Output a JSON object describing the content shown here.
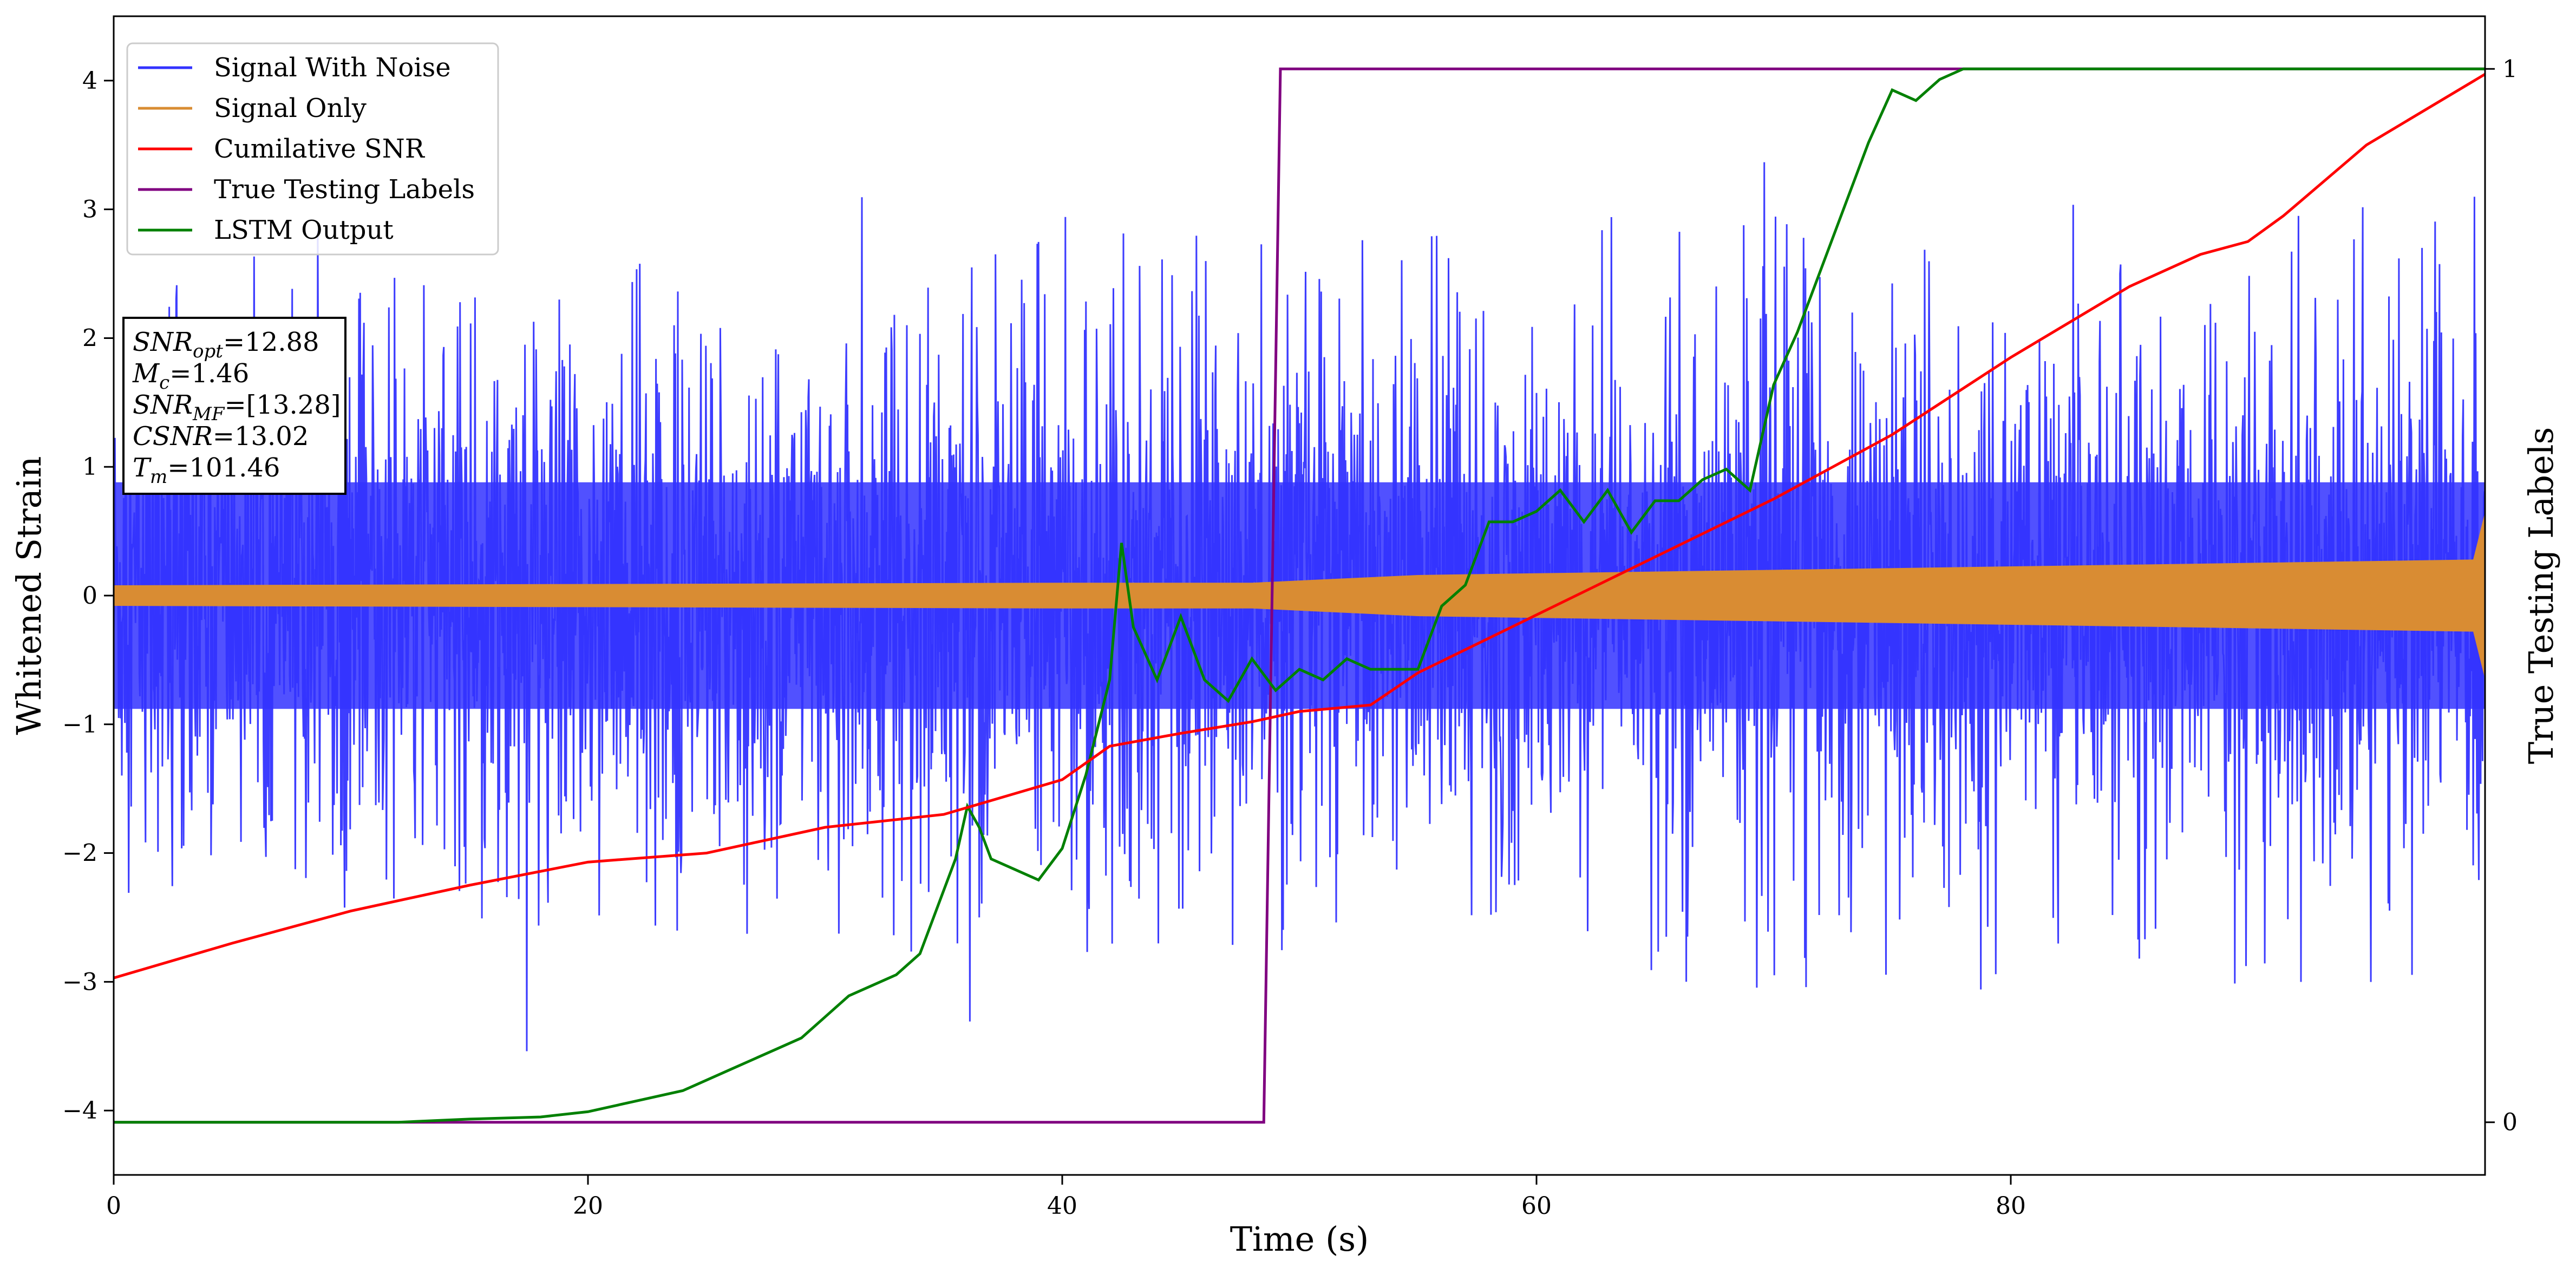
{
  "chart_data": {
    "type": "line",
    "xlabel": "Time (s)",
    "ylabel": "Whitened Strain",
    "y2label": "True Testing Labels",
    "xlim": [
      0,
      100
    ],
    "ylim": [
      -4.5,
      4.5
    ],
    "y2lim": [
      -0.05,
      1.05
    ],
    "x_ticks": [
      0,
      20,
      40,
      60,
      80
    ],
    "y_ticks": [
      -4,
      -3,
      -2,
      -1,
      0,
      1,
      2,
      3,
      4
    ],
    "y2_ticks": [
      0,
      1
    ],
    "legend_position": "upper-left",
    "grid": false,
    "colors": {
      "noise": "#3333ff",
      "signal": "#d98c33",
      "csnr": "#ff0000",
      "labels": "#800080",
      "lstm": "#008000"
    },
    "series": [
      {
        "name": "Signal With Noise",
        "color": "#3333ff",
        "description_style": "dense noise band",
        "band": [
          {
            "x": 0,
            "low": -1.6,
            "high": 1.6,
            "peak_low": -2.3,
            "peak_high": 2.4
          },
          {
            "x": 20,
            "low": -1.6,
            "high": 1.6,
            "peak_low": -2.4,
            "peak_high": 2.6
          },
          {
            "x": 40,
            "low": -1.6,
            "high": 1.6,
            "peak_low": -2.5,
            "peak_high": 2.8
          },
          {
            "x": 60,
            "low": -1.6,
            "high": 1.6,
            "peak_low": -2.6,
            "peak_high": 3.0
          },
          {
            "x": 80,
            "low": -1.6,
            "high": 1.6,
            "peak_low": -2.7,
            "peak_high": 3.1
          },
          {
            "x": 100,
            "low": -1.6,
            "high": 1.6,
            "peak_low": -2.7,
            "peak_high": 3.1
          }
        ]
      },
      {
        "name": "Signal Only",
        "color": "#d98c33",
        "band": [
          {
            "x": 0,
            "amp": 0.08
          },
          {
            "x": 40,
            "amp": 0.1
          },
          {
            "x": 48,
            "amp": 0.1
          },
          {
            "x": 55,
            "amp": 0.16
          },
          {
            "x": 70,
            "amp": 0.2
          },
          {
            "x": 85,
            "amp": 0.24
          },
          {
            "x": 99.5,
            "amp": 0.28
          },
          {
            "x": 100,
            "amp": 0.65
          }
        ]
      },
      {
        "name": "Cumilative SNR",
        "color": "#ff0000",
        "axis": "left",
        "x": [
          0,
          5,
          10,
          15,
          20,
          25,
          30,
          35,
          40,
          42,
          45,
          48,
          50,
          53,
          55,
          60,
          65,
          70,
          75,
          80,
          85,
          88,
          90,
          91.5,
          95,
          100
        ],
        "y": [
          -2.97,
          -2.7,
          -2.45,
          -2.25,
          -2.07,
          -2.0,
          -1.8,
          -1.7,
          -1.43,
          -1.17,
          -1.07,
          -0.98,
          -0.9,
          -0.85,
          -0.6,
          -0.15,
          0.3,
          0.75,
          1.25,
          1.85,
          2.4,
          2.65,
          2.75,
          2.95,
          3.5,
          4.05
        ]
      },
      {
        "name": "True Testing Labels",
        "color": "#800080",
        "axis": "right",
        "x": [
          0,
          48.5,
          49.2,
          100
        ],
        "y": [
          0,
          0,
          1,
          1
        ]
      },
      {
        "name": "LSTM Output",
        "color": "#008000",
        "axis": "right",
        "x": [
          0,
          12,
          15,
          18,
          20,
          22,
          24,
          26,
          27,
          28,
          29,
          30,
          31,
          32,
          33,
          34,
          35,
          35.5,
          36,
          36.5,
          37,
          38,
          39,
          40,
          41,
          42,
          42.5,
          43,
          44,
          45,
          46,
          47,
          48,
          49,
          50,
          51,
          52,
          53,
          55,
          56,
          57,
          58,
          59,
          60,
          61,
          62,
          63,
          64,
          65,
          66,
          67,
          68,
          69,
          70,
          71,
          72,
          73,
          74,
          75,
          76,
          77,
          78,
          80,
          100
        ],
        "y": [
          0,
          0,
          0.003,
          0.005,
          0.01,
          0.02,
          0.03,
          0.05,
          0.06,
          0.07,
          0.08,
          0.1,
          0.12,
          0.13,
          0.14,
          0.16,
          0.22,
          0.25,
          0.3,
          0.28,
          0.25,
          0.24,
          0.23,
          0.26,
          0.33,
          0.42,
          0.55,
          0.47,
          0.42,
          0.48,
          0.42,
          0.4,
          0.44,
          0.41,
          0.43,
          0.42,
          0.44,
          0.43,
          0.43,
          0.49,
          0.51,
          0.57,
          0.57,
          0.58,
          0.6,
          0.57,
          0.6,
          0.56,
          0.59,
          0.59,
          0.61,
          0.62,
          0.6,
          0.7,
          0.75,
          0.81,
          0.87,
          0.93,
          0.98,
          0.97,
          0.99,
          1.0,
          1.0,
          1.0
        ]
      }
    ],
    "legend": [
      "Signal With Noise",
      "Signal Only",
      "Cumilative SNR",
      "True Testing Labels",
      "LSTM Output"
    ],
    "info_box": [
      {
        "sym": "SNR",
        "sub": "opt",
        "val": "=12.88"
      },
      {
        "sym": "M",
        "sub": "c",
        "val": "=1.46"
      },
      {
        "sym": "SNR",
        "sub": "MF",
        "val": "=[13.28]"
      },
      {
        "sym": "CSNR",
        "sub": "",
        "val": "=13.02"
      },
      {
        "sym": "T",
        "sub": "m",
        "val": "=101.46"
      }
    ]
  }
}
